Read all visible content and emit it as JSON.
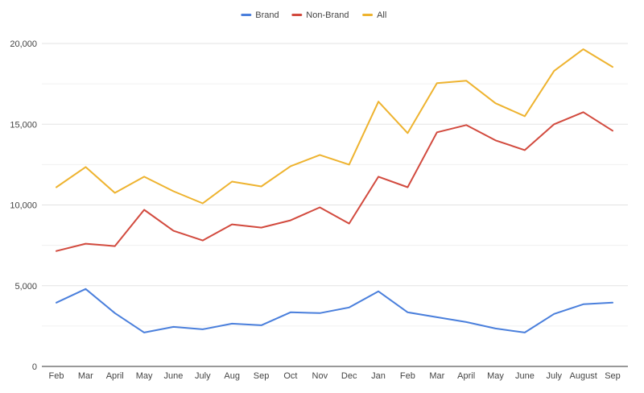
{
  "chart_data": {
    "type": "line",
    "categories": [
      "Feb",
      "Mar",
      "April",
      "May",
      "June",
      "July",
      "Aug",
      "Sep",
      "Oct",
      "Nov",
      "Dec",
      "Jan",
      "Feb",
      "Mar",
      "April",
      "May",
      "June",
      "July",
      "August",
      "Sep"
    ],
    "yticks": [
      "0",
      "5,000",
      "10,000",
      "15,000",
      "20,000"
    ],
    "ylim": [
      0,
      21000
    ],
    "grid": true,
    "legend_position": "top-center",
    "series": [
      {
        "name": "Brand",
        "color": "#4a7fdc",
        "values": [
          3950,
          4800,
          3300,
          2100,
          2450,
          2300,
          2650,
          2550,
          3350,
          3300,
          3650,
          4650,
          3350,
          3050,
          2750,
          2350,
          2100,
          3250,
          3850,
          3950
        ]
      },
      {
        "name": "Non-Brand",
        "color": "#d24a3e",
        "values": [
          7150,
          7600,
          7450,
          9700,
          8400,
          7800,
          8800,
          8600,
          9050,
          9850,
          8850,
          11750,
          11100,
          14500,
          14950,
          14000,
          13400,
          15000,
          15750,
          14600
        ]
      },
      {
        "name": "All",
        "color": "#eeb32f",
        "values": [
          11100,
          12350,
          10750,
          11750,
          10850,
          10100,
          11450,
          11150,
          12400,
          13100,
          12500,
          16400,
          14450,
          17550,
          17700,
          16300,
          15500,
          18300,
          19650,
          18550
        ]
      }
    ]
  }
}
